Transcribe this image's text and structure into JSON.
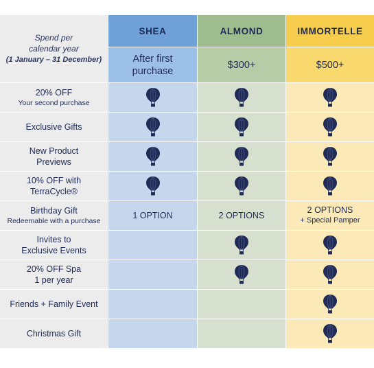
{
  "header": {
    "spend_line1": "Spend per",
    "spend_line2": "calendar year",
    "spend_line3": "(1 January – 31 December)"
  },
  "tiers": [
    {
      "name": "SHEA",
      "requirement_line1": "After first",
      "requirement_line2": "purchase",
      "color": "#6fa0d7"
    },
    {
      "name": "ALMOND",
      "requirement_line1": "$300+",
      "requirement_line2": "",
      "color": "#9fbc8e"
    },
    {
      "name": "IMMORTELLE",
      "requirement_line1": "$500+",
      "requirement_line2": "",
      "color": "#f6cd4c"
    }
  ],
  "benefits": [
    {
      "main": "20% OFF",
      "sub": "Your second purchase",
      "shea": true,
      "almond": true,
      "immortelle": true
    },
    {
      "main": "Exclusive Gifts",
      "sub": "",
      "shea": true,
      "almond": true,
      "immortelle": true
    },
    {
      "main": "New Product",
      "sub2": "Previews",
      "shea": true,
      "almond": true,
      "immortelle": true
    },
    {
      "main": "10% OFF with",
      "sub2": "TerraCycle®",
      "shea": true,
      "almond": true,
      "immortelle": true
    },
    {
      "main": "Birthday Gift",
      "sub": "Redeemable with a purchase",
      "shea_text": "1 OPTION",
      "almond_text": "2 OPTIONS",
      "immortelle_text": "2 OPTIONS",
      "immortelle_sub": "+ Special Pamper"
    },
    {
      "main": "Invites to",
      "sub2": "Exclusive Events",
      "shea": false,
      "almond": true,
      "immortelle": true
    },
    {
      "main": "20% OFF Spa",
      "sub2": "1 per year",
      "shea": false,
      "almond": true,
      "immortelle": true
    },
    {
      "main": "Friends + Family Event",
      "shea": false,
      "almond": false,
      "immortelle": true
    },
    {
      "main": "Christmas Gift",
      "shea": false,
      "almond": false,
      "immortelle": true
    }
  ],
  "icon": {
    "name": "hot-air-balloon-icon",
    "color": "#1f2a55"
  }
}
